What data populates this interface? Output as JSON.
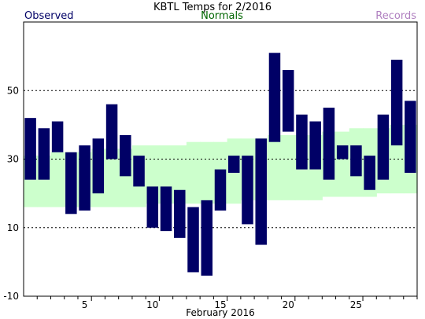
{
  "chart_data": {
    "type": "bar",
    "title": "KBTL Temps for 2/2016",
    "xlabel": "February 2016",
    "ylabel": "",
    "xlim": [
      1,
      29
    ],
    "ylim": [
      -10,
      70
    ],
    "y_ticks": [
      -10,
      10,
      30,
      50
    ],
    "x_ticks": [
      5,
      10,
      15,
      20,
      25
    ],
    "grid": "dashed horizontal lines at y ticks",
    "legend": [
      {
        "name": "Observed",
        "color": "#000066",
        "position": "top-left"
      },
      {
        "name": "Normals",
        "color": "#006600",
        "position": "top-center"
      },
      {
        "name": "Records",
        "color": "#b080c0",
        "position": "top-right"
      }
    ],
    "observed": [
      {
        "day": 1,
        "low": 24,
        "high": 42
      },
      {
        "day": 2,
        "low": 24,
        "high": 39
      },
      {
        "day": 3,
        "low": 32,
        "high": 41
      },
      {
        "day": 4,
        "low": 14,
        "high": 32
      },
      {
        "day": 5,
        "low": 15,
        "high": 34
      },
      {
        "day": 6,
        "low": 20,
        "high": 36
      },
      {
        "day": 7,
        "low": 30,
        "high": 46
      },
      {
        "day": 8,
        "low": 25,
        "high": 37
      },
      {
        "day": 9,
        "low": 22,
        "high": 31
      },
      {
        "day": 10,
        "low": 10,
        "high": 22
      },
      {
        "day": 11,
        "low": 9,
        "high": 22
      },
      {
        "day": 12,
        "low": 7,
        "high": 21
      },
      {
        "day": 13,
        "low": -3,
        "high": 16
      },
      {
        "day": 14,
        "low": -4,
        "high": 18
      },
      {
        "day": 15,
        "low": 15,
        "high": 27
      },
      {
        "day": 16,
        "low": 26,
        "high": 31
      },
      {
        "day": 17,
        "low": 11,
        "high": 31
      },
      {
        "day": 18,
        "low": 5,
        "high": 36
      },
      {
        "day": 19,
        "low": 35,
        "high": 61
      },
      {
        "day": 20,
        "low": 38,
        "high": 56
      },
      {
        "day": 21,
        "low": 27,
        "high": 43
      },
      {
        "day": 22,
        "low": 27,
        "high": 41
      },
      {
        "day": 23,
        "low": 24,
        "high": 45
      },
      {
        "day": 24,
        "low": 30,
        "high": 34
      },
      {
        "day": 25,
        "low": 25,
        "high": 34
      },
      {
        "day": 26,
        "low": 21,
        "high": 31
      },
      {
        "day": 27,
        "low": 24,
        "high": 43
      },
      {
        "day": 28,
        "low": 34,
        "high": 59
      },
      {
        "day": 29,
        "low": 26,
        "high": 47
      }
    ],
    "normals": [
      {
        "day": 1,
        "low": 16,
        "high": 31
      },
      {
        "day": 2,
        "low": 16,
        "high": 31
      },
      {
        "day": 3,
        "low": 16,
        "high": 32
      },
      {
        "day": 4,
        "low": 16,
        "high": 32
      },
      {
        "day": 5,
        "low": 16,
        "high": 32
      },
      {
        "day": 6,
        "low": 16,
        "high": 33
      },
      {
        "day": 7,
        "low": 16,
        "high": 33
      },
      {
        "day": 8,
        "low": 16,
        "high": 33
      },
      {
        "day": 9,
        "low": 16,
        "high": 34
      },
      {
        "day": 10,
        "low": 17,
        "high": 34
      },
      {
        "day": 11,
        "low": 17,
        "high": 34
      },
      {
        "day": 12,
        "low": 17,
        "high": 34
      },
      {
        "day": 13,
        "low": 17,
        "high": 35
      },
      {
        "day": 14,
        "low": 17,
        "high": 35
      },
      {
        "day": 15,
        "low": 17,
        "high": 35
      },
      {
        "day": 16,
        "low": 17,
        "high": 36
      },
      {
        "day": 17,
        "low": 18,
        "high": 36
      },
      {
        "day": 18,
        "low": 18,
        "high": 36
      },
      {
        "day": 19,
        "low": 18,
        "high": 37
      },
      {
        "day": 20,
        "low": 18,
        "high": 37
      },
      {
        "day": 21,
        "low": 18,
        "high": 37
      },
      {
        "day": 22,
        "low": 18,
        "high": 37
      },
      {
        "day": 23,
        "low": 19,
        "high": 38
      },
      {
        "day": 24,
        "low": 19,
        "high": 38
      },
      {
        "day": 25,
        "low": 19,
        "high": 39
      },
      {
        "day": 26,
        "low": 19,
        "high": 39
      },
      {
        "day": 27,
        "low": 20,
        "high": 39
      },
      {
        "day": 28,
        "low": 20,
        "high": 40
      },
      {
        "day": 29,
        "low": 20,
        "high": 40
      }
    ],
    "colors": {
      "observed_bar": "#000066",
      "normals_band": "#ccffcc",
      "grid": "#000000",
      "axes": "#000000",
      "observed_label": "#000066",
      "normals_label": "#006600",
      "records_label": "#b080c0"
    }
  }
}
